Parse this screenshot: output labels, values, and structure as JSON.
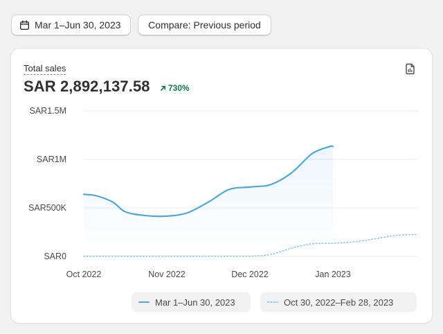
{
  "toolbar": {
    "date_range_label": "Mar 1–Jun 30, 2023",
    "compare_label": "Compare: Previous period"
  },
  "card": {
    "title": "Total sales",
    "total_value": "SAR 2,892,137.58",
    "change_percent": "730%",
    "change_direction": "up"
  },
  "colors": {
    "primary_series": "#4fa6dc",
    "comparison_series": "#8cc8ec",
    "positive_change": "#107a4e"
  },
  "chart_data": {
    "type": "line",
    "title": "",
    "xlabel": "",
    "ylabel": "",
    "y_ticks": [
      "SAR0",
      "SAR500K",
      "SAR1M",
      "SAR1.5M"
    ],
    "y_tick_values": [
      0,
      500000,
      1000000,
      1500000
    ],
    "ylim": [
      0,
      1500000
    ],
    "x_ticks": [
      "Oct 2022",
      "Nov 2022",
      "Dec 2022",
      "Jan 2023"
    ],
    "x_tick_values": [
      0,
      1,
      2,
      3
    ],
    "grid": true,
    "legend_position": "bottom",
    "series": [
      {
        "name": "Mar 1–Jun 30, 2023",
        "style": "solid",
        "x": [
          0,
          0.15,
          0.35,
          0.5,
          0.75,
          1.0,
          1.25,
          1.5,
          1.75,
          2.0,
          2.25,
          2.5,
          2.75,
          2.95,
          3.0
        ],
        "values": [
          640000,
          625000,
          560000,
          460000,
          420000,
          415000,
          450000,
          560000,
          690000,
          715000,
          740000,
          860000,
          1060000,
          1130000,
          1135000
        ]
      },
      {
        "name": "Oct 30, 2022–Feb 28, 2023",
        "style": "dotted",
        "x": [
          0,
          0.5,
          1.0,
          1.5,
          2.0,
          2.25,
          2.5,
          2.75,
          3.0,
          3.25,
          3.5,
          3.75,
          4.0
        ],
        "values": [
          2000,
          2000,
          2000,
          2000,
          3000,
          20000,
          85000,
          130000,
          135000,
          150000,
          180000,
          215000,
          225000
        ]
      }
    ]
  }
}
